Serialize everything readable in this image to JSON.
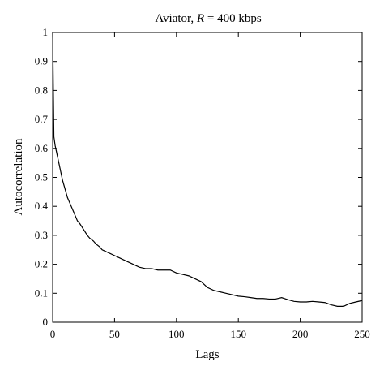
{
  "chart_data": {
    "type": "line",
    "title_prefix": "Aviator, ",
    "title_var": "R",
    "title_suffix": " = 400 kbps",
    "xlabel": "Lags",
    "ylabel": "Autocorrelation",
    "xlim": [
      0,
      250
    ],
    "ylim": [
      0,
      1
    ],
    "xticks": [
      0,
      50,
      100,
      150,
      200,
      250
    ],
    "yticks": [
      0,
      0.1,
      0.2,
      0.3,
      0.4,
      0.5,
      0.6,
      0.7,
      0.8,
      0.9,
      1
    ],
    "xtick_labels": [
      "0",
      "50",
      "100",
      "150",
      "200",
      "250"
    ],
    "ytick_labels": [
      "0",
      "0.1",
      "0.2",
      "0.3",
      "0.4",
      "0.5",
      "0.6",
      "0.7",
      "0.8",
      "0.9",
      "1"
    ],
    "grid": false,
    "series": [
      {
        "x": [
          0,
          1,
          2,
          4,
          6,
          8,
          10,
          12,
          15,
          18,
          20,
          22,
          25,
          28,
          30,
          33,
          35,
          38,
          40,
          45,
          50,
          55,
          60,
          65,
          70,
          75,
          80,
          85,
          90,
          95,
          100,
          105,
          110,
          115,
          120,
          125,
          130,
          135,
          140,
          145,
          150,
          155,
          160,
          165,
          170,
          175,
          180,
          185,
          190,
          195,
          200,
          205,
          210,
          215,
          220,
          225,
          230,
          235,
          240,
          245,
          250
        ],
        "y": [
          1.0,
          0.64,
          0.61,
          0.57,
          0.53,
          0.49,
          0.46,
          0.43,
          0.4,
          0.37,
          0.35,
          0.34,
          0.32,
          0.3,
          0.29,
          0.28,
          0.27,
          0.26,
          0.25,
          0.24,
          0.23,
          0.22,
          0.21,
          0.2,
          0.19,
          0.185,
          0.185,
          0.18,
          0.18,
          0.18,
          0.17,
          0.165,
          0.16,
          0.15,
          0.14,
          0.12,
          0.11,
          0.105,
          0.1,
          0.095,
          0.09,
          0.088,
          0.085,
          0.082,
          0.082,
          0.08,
          0.08,
          0.085,
          0.078,
          0.072,
          0.07,
          0.07,
          0.072,
          0.07,
          0.068,
          0.06,
          0.055,
          0.055,
          0.065,
          0.07,
          0.075
        ]
      }
    ]
  }
}
